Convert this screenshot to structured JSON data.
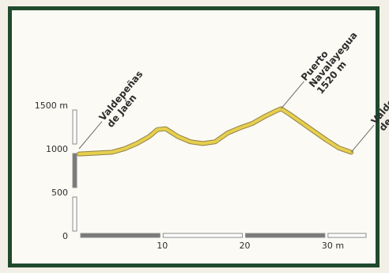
{
  "chart_data": {
    "type": "line",
    "title": "",
    "xlabel": "",
    "ylabel": "",
    "xlim": [
      0,
      35
    ],
    "ylim": [
      0,
      1500
    ],
    "x_ticks": [
      {
        "value": 10,
        "label": "10"
      },
      {
        "value": 20,
        "label": "20"
      },
      {
        "value": 30,
        "label": "30 m"
      }
    ],
    "y_ticks": [
      {
        "value": 0,
        "label": "0"
      },
      {
        "value": 500,
        "label": "500"
      },
      {
        "value": 1000,
        "label": "1000"
      },
      {
        "value": 1500,
        "label": "1500 m"
      }
    ],
    "series": [
      {
        "name": "",
        "color": "#e7cf4e",
        "x": [
          0,
          2,
          4,
          5.5,
          7,
          8.5,
          9.5,
          10.5,
          12,
          13.5,
          15,
          16.5,
          18,
          19.5,
          21,
          22.5,
          24,
          24.5,
          25.5,
          27,
          28.5,
          30,
          31.5,
          33
        ],
        "y": [
          940,
          950,
          960,
          1000,
          1060,
          1140,
          1220,
          1230,
          1140,
          1080,
          1060,
          1080,
          1180,
          1240,
          1290,
          1370,
          1440,
          1460,
          1400,
          1300,
          1200,
          1100,
          1010,
          960
        ]
      }
    ],
    "annotations": [
      {
        "lines": [
          "Valdepeñas",
          "de Jaén"
        ],
        "x": 0,
        "y": 1000
      },
      {
        "lines": [
          "Puerto",
          "Navalayegua",
          "1520 m"
        ],
        "x": 24.5,
        "y": 1460
      },
      {
        "lines": [
          "Valdepeñas",
          "de Jaén"
        ],
        "x": 33,
        "y": 960
      }
    ]
  }
}
